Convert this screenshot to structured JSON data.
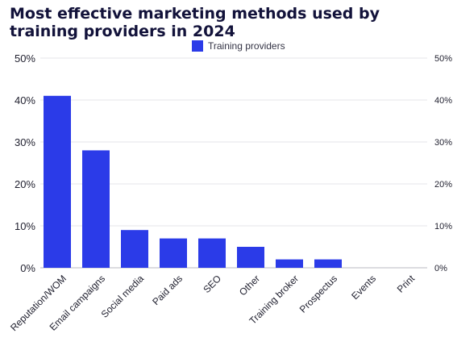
{
  "chart_data": {
    "type": "bar",
    "title": "Most effective marketing methods used by training providers in 2024",
    "categories": [
      "Reputation/WOM",
      "Email campaigns",
      "Social media",
      "Paid ads",
      "SEO",
      "Other",
      "Training broker",
      "Prospectus",
      "Events",
      "Print"
    ],
    "series": [
      {
        "name": "Training providers",
        "values": [
          41,
          28,
          9,
          7,
          7,
          5,
          2,
          2,
          0,
          0
        ]
      }
    ],
    "ylim": [
      0,
      50
    ],
    "yticks": [
      "0%",
      "10%",
      "20%",
      "30%",
      "40%",
      "50%"
    ],
    "xlabel": "",
    "ylabel": "",
    "grid": true,
    "legend_position": "top-center",
    "bar_color": "#2b3be8"
  }
}
